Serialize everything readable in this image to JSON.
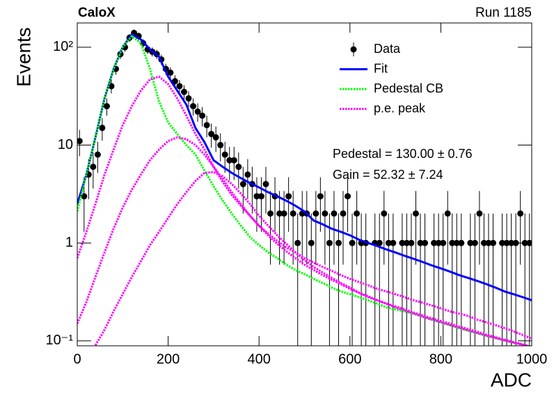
{
  "chart_data": {
    "type": "histogram-fit",
    "title": "CaloX",
    "subtitle": "Run 1185",
    "x_label": "ADC",
    "y_label": "Events",
    "log_y": true,
    "legend": "top-right",
    "annotations": [
      "Pedestal = 130.00 ± 0.76",
      "Gain = 52.32 ± 7.24"
    ],
    "xlim": [
      0,
      1000
    ],
    "ylim": [
      0.089,
      177
    ],
    "xticks": [
      0,
      200,
      400,
      600,
      800,
      1000
    ],
    "yticks": [
      {
        "value": 0.1,
        "label": "10⁻¹"
      },
      1,
      10,
      {
        "value": 100,
        "label": "10²"
      }
    ],
    "x": [
      0,
      20,
      40,
      60,
      80,
      100,
      120,
      140,
      160,
      180,
      200,
      220,
      240,
      260,
      280,
      300,
      320,
      340,
      360,
      380,
      400,
      420,
      440,
      460,
      480,
      500,
      520,
      540,
      560,
      580,
      600,
      620,
      640,
      660,
      680,
      700,
      720,
      740,
      760,
      780,
      800,
      820,
      840,
      860,
      880,
      900,
      920,
      940,
      960,
      980,
      1000
    ],
    "series": [
      {
        "name": "Data",
        "style": "points",
        "color": "#000000",
        "x": [
          5,
          15,
          25,
          35,
          45,
          55,
          65,
          75,
          85,
          95,
          105,
          115,
          125,
          135,
          145,
          155,
          165,
          175,
          185,
          195,
          205,
          215,
          225,
          235,
          245,
          255,
          265,
          275,
          285,
          295,
          305,
          315,
          325,
          335,
          345,
          355,
          365,
          375,
          385,
          395,
          405,
          415,
          425,
          435,
          445,
          455,
          465,
          475,
          485,
          495,
          505,
          515,
          525,
          535,
          545,
          555,
          565,
          575,
          585,
          595,
          605,
          615,
          625,
          635,
          645,
          655,
          665,
          675,
          685,
          695,
          705,
          715,
          725,
          735,
          745,
          755,
          765,
          775,
          785,
          795,
          805,
          815,
          825,
          835,
          845,
          855,
          865,
          875,
          885,
          895,
          905,
          915,
          925,
          935,
          945,
          955,
          965,
          975,
          985,
          995
        ],
        "values": [
          11,
          3,
          5,
          6,
          8,
          15,
          25,
          40,
          60,
          85,
          100,
          125,
          140,
          130,
          110,
          95,
          90,
          85,
          75,
          60,
          55,
          45,
          40,
          35,
          30,
          25,
          22,
          20,
          16,
          13,
          12,
          10,
          8,
          7,
          7,
          6,
          4,
          5,
          4,
          3,
          3,
          4,
          2,
          3,
          2,
          2,
          3,
          2,
          1,
          2,
          2,
          1,
          2,
          3,
          2,
          1,
          2,
          1,
          2,
          3,
          1,
          2,
          1,
          1,
          null,
          1,
          1,
          2,
          1,
          1,
          null,
          1,
          1,
          1,
          2,
          1,
          1,
          null,
          1,
          1,
          1,
          2,
          1,
          1,
          1,
          null,
          1,
          1,
          2,
          1,
          1,
          1,
          null,
          1,
          1,
          1,
          1,
          2,
          1,
          1
        ],
        "errors": [
          3.3,
          1.7,
          2.2,
          2.4,
          2.8,
          3.9,
          5,
          6.3,
          7.7,
          9.2,
          10,
          11.2,
          11.8,
          11.4,
          10.5,
          9.7,
          9.5,
          9.2,
          8.7,
          7.7,
          7.4,
          6.7,
          6.3,
          5.9,
          5.5,
          5,
          4.7,
          4.5,
          4,
          3.6,
          3.5,
          3.2,
          2.8,
          2.6,
          2.6,
          2.4,
          2,
          2.2,
          2,
          1.7,
          1.7,
          2,
          1.4,
          1.7,
          1.4,
          1.4,
          1.7,
          1.4,
          1,
          1.4,
          1.4,
          1,
          1.4,
          1.7,
          1.4,
          1,
          1.4,
          1,
          1.4,
          1.7,
          1,
          1.4,
          1,
          1,
          null,
          1,
          1,
          1.4,
          1,
          1,
          null,
          1,
          1,
          1,
          1.4,
          1,
          1,
          null,
          1,
          1,
          1,
          1.4,
          1,
          1,
          1,
          null,
          1,
          1,
          1.4,
          1,
          1,
          1,
          null,
          1,
          1,
          1,
          1,
          1.4,
          1,
          1
        ]
      },
      {
        "name": "Fit",
        "style": "solid",
        "color": "#0000ff",
        "values": [
          2.5,
          5,
          12,
          30,
          60,
          100,
          135,
          120,
          95,
          80,
          50,
          36,
          26,
          15,
          10.7,
          7,
          6,
          5.2,
          4.6,
          4.1,
          3.7,
          3.3,
          3.0,
          2.7,
          2.4,
          2.1,
          1.7,
          1.55,
          1.4,
          1.3,
          1.2,
          1.08,
          1.0,
          0.93,
          0.86,
          0.8,
          0.74,
          0.69,
          0.64,
          0.59,
          0.55,
          0.51,
          0.47,
          0.44,
          0.41,
          0.38,
          0.35,
          0.32,
          0.3,
          0.28,
          0.26
        ]
      },
      {
        "name": "Pedestal CB",
        "style": "dotted",
        "color": "#00ff00",
        "values": [
          2.1,
          5,
          12,
          30,
          60,
          100,
          130,
          110,
          60,
          28,
          17,
          13,
          10,
          8,
          5.5,
          3.8,
          2.7,
          2,
          1.5,
          1.15,
          0.95,
          0.8,
          0.7,
          0.6,
          0.53,
          0.48,
          0.43,
          0.39,
          0.35,
          0.32,
          0.3,
          0.28,
          0.26,
          0.24,
          0.22,
          0.21,
          0.2,
          0.19,
          0.18,
          0.165,
          0.155,
          0.145,
          0.135,
          0.127,
          0.12,
          0.113,
          0.107,
          0.101,
          0.096,
          0.092,
          0.088
        ]
      },
      {
        "name": "p.e. peak",
        "style": "dotted",
        "color": "#ff00ff",
        "values": [
          [
            0.7,
            1.3,
            2.5,
            5,
            9,
            16,
            25,
            36,
            47,
            50,
            42,
            30,
            20,
            13,
            9,
            6,
            4.2,
            3.1,
            2.4,
            1.9,
            1.5,
            1.25,
            1.05,
            0.9,
            0.8,
            0.7,
            0.63,
            0.57,
            0.52,
            0.47,
            0.43,
            0.4,
            0.37,
            0.34,
            0.32,
            0.3,
            0.28,
            0.26,
            0.245,
            0.23,
            0.215,
            0.2,
            0.19,
            0.18,
            0.165,
            0.155,
            0.145,
            0.135,
            0.125,
            0.115,
            0.105
          ],
          [
            0.15,
            0.25,
            0.45,
            0.8,
            1.4,
            2.3,
            3.5,
            5,
            7,
            9,
            11,
            12,
            11.5,
            10,
            8,
            6,
            4.5,
            3.3,
            2.5,
            1.9,
            1.5,
            1.2,
            0.98,
            0.82,
            0.7,
            0.6,
            0.53,
            0.47,
            0.42,
            0.38,
            0.34,
            0.31,
            0.285,
            0.26,
            0.24,
            0.225,
            0.21,
            0.195,
            0.182,
            0.17,
            0.16,
            0.15,
            0.14,
            0.132,
            0.124,
            0.116,
            0.109,
            0.103,
            0.097,
            0.092,
            0.087
          ],
          [
            null,
            null,
            0.09,
            0.13,
            0.2,
            0.3,
            0.45,
            0.65,
            0.95,
            1.3,
            1.8,
            2.5,
            3.3,
            4.3,
            5.2,
            5.3,
            4.8,
            4,
            3.2,
            2.5,
            1.9,
            1.5,
            1.2,
            0.98,
            0.8,
            0.67,
            0.57,
            0.5,
            0.44,
            0.39,
            0.35,
            0.31,
            0.28,
            0.26,
            0.24,
            0.22,
            0.205,
            0.19,
            0.176,
            0.165,
            0.155,
            0.145,
            0.136,
            0.128,
            0.12,
            0.113,
            0.107,
            0.101,
            0.096,
            0.091,
            0.086
          ]
        ]
      }
    ]
  }
}
